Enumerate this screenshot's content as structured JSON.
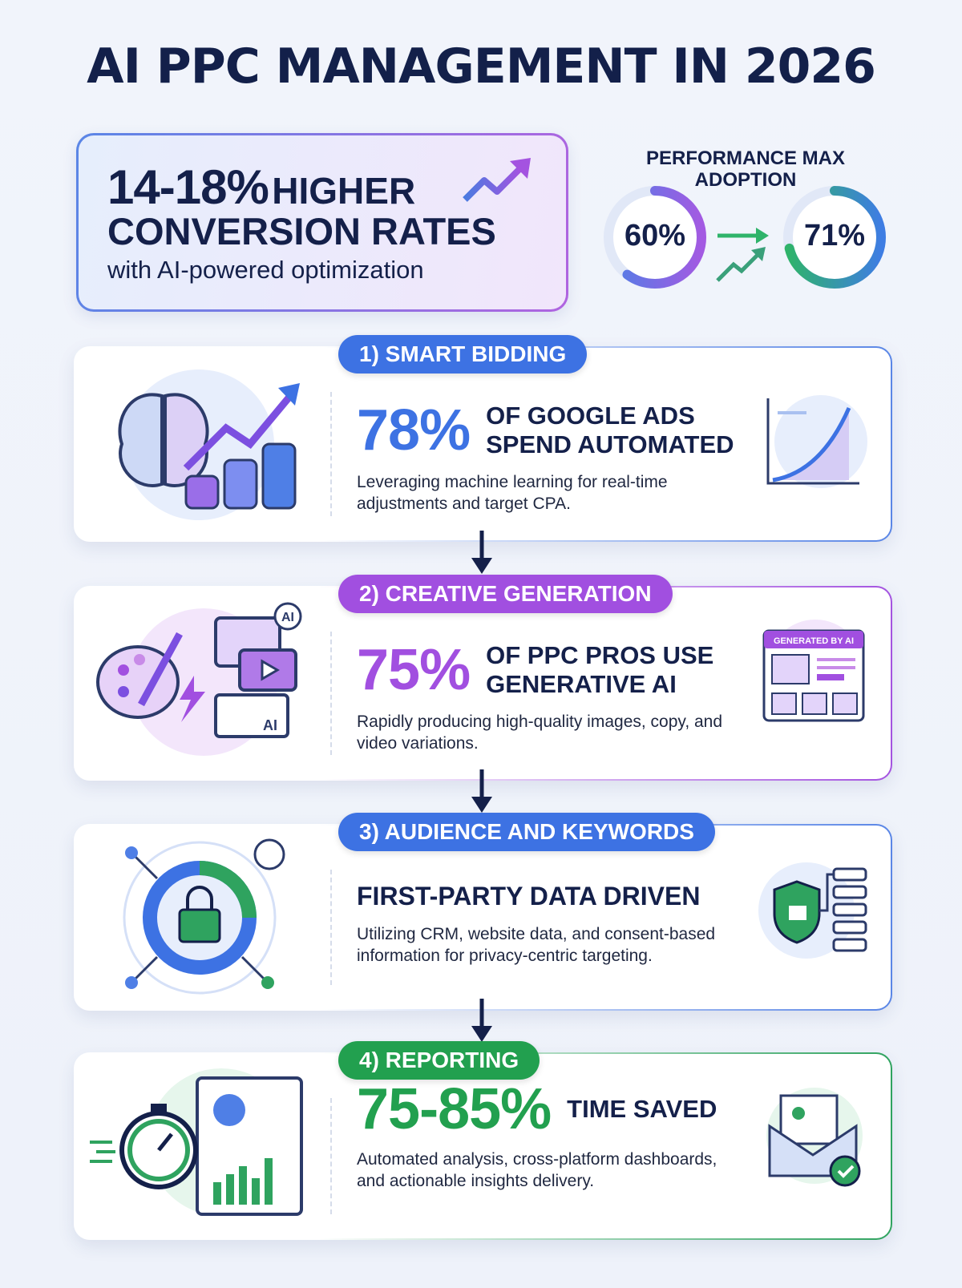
{
  "header": {
    "title": "AI PPC MANAGEMENT IN 2026"
  },
  "hero": {
    "stat": "14-18%",
    "headline_1": "HIGHER",
    "headline_2": "CONVERSION RATES",
    "subtitle": "with AI-powered optimization"
  },
  "adoption": {
    "title": "PERFORMANCE MAX ADOPTION",
    "before": "60%",
    "after": "71%"
  },
  "sections": [
    {
      "label": "1) SMART BIDDING",
      "stat": "78%",
      "stat_text": "OF GOOGLE ADS SPEND AUTOMATED",
      "description": "Leveraging machine learning for real-time adjustments and target CPA."
    },
    {
      "label": "2) CREATIVE GENERATION",
      "stat": "75%",
      "stat_text": "OF PPC PROS USE GENERATIVE AI",
      "description": "Rapidly producing high-quality images, copy, and video variations.",
      "icon_label": "AI",
      "badge": "GENERATED BY AI"
    },
    {
      "label": "3) AUDIENCE AND KEYWORDS",
      "heading": "FIRST-PARTY DATA DRIVEN",
      "description": "Utilizing CRM, website data, and consent-based information for privacy-centric targeting."
    },
    {
      "label": "4) REPORTING",
      "stat": "75-85%",
      "stat_text": "TIME SAVED",
      "description": "Automated analysis, cross-platform dashboards, and actionable insights delivery."
    }
  ]
}
